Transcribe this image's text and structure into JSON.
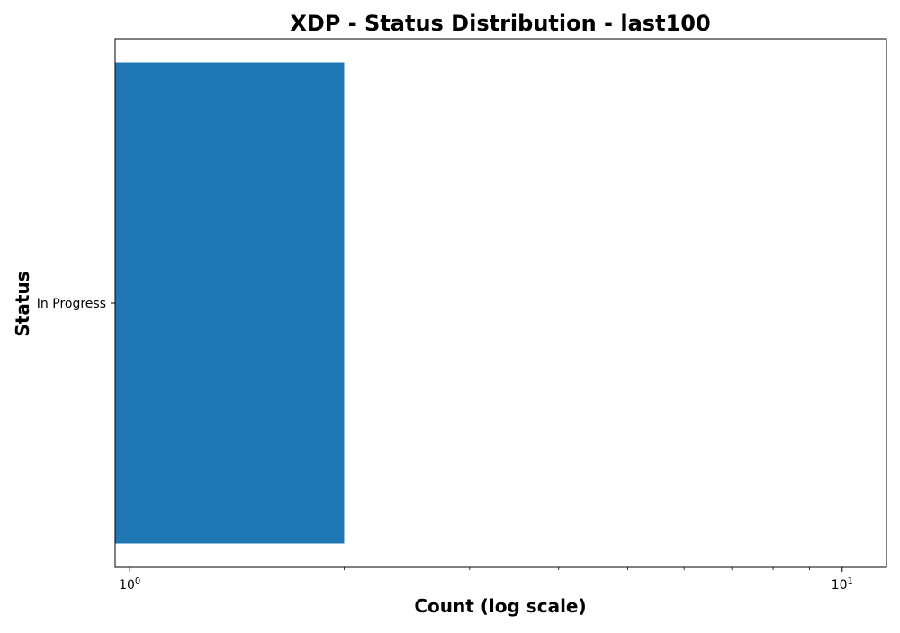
{
  "chart_data": {
    "type": "bar",
    "orientation": "horizontal",
    "title": "XDP - Status Distribution - last100",
    "xlabel": "Count (log scale)",
    "ylabel": "Status",
    "x_scale": "log",
    "xlim": [
      0.954,
      11.54
    ],
    "categories": [
      "In Progress"
    ],
    "values": [
      2
    ],
    "x_major_ticks": [
      {
        "value": 1,
        "base": "10",
        "exponent": "0"
      },
      {
        "value": 10,
        "base": "10",
        "exponent": "1"
      }
    ],
    "x_minor_ticks": [
      2,
      3,
      4,
      5,
      6,
      7,
      8,
      9
    ],
    "grid": false,
    "legend": "none",
    "bar_color": "#1f77b4"
  }
}
